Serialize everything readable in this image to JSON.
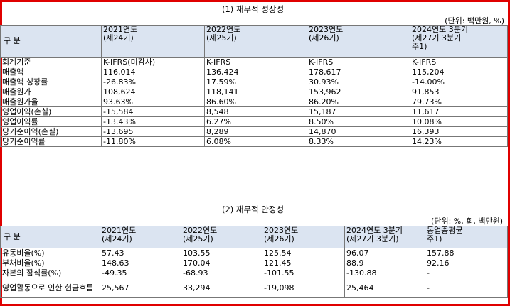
{
  "section1": {
    "title": "(1) 재무적 성장성",
    "unit": "(단위: 백만원, %)",
    "header": [
      "구    분",
      "2021연도\n(제24기)",
      "2022연도\n(제25기)",
      "2023연도\n(제26기)",
      "2024연도 3분기\n(제27기 3분기\n주1)"
    ],
    "rows": [
      [
        "회계기준",
        "K-IFRS(미감사)",
        "K-IFRS",
        "K-IFRS",
        "K-IFRS"
      ],
      [
        "매출액",
        "116,014",
        "136,424",
        "178,617",
        "115,204"
      ],
      [
        "매출액 성장률",
        "-26.83%",
        "17.59%",
        "30.93%",
        "-14.00%"
      ],
      [
        "매출원가",
        "108,624",
        "118,141",
        "153,962",
        "91,853"
      ],
      [
        "매출원가율",
        "93.63%",
        "86.60%",
        "86.20%",
        "79.73%"
      ],
      [
        "영업이익(손실)",
        "-15,584",
        "8,548",
        "15,187",
        "11,617"
      ],
      [
        "영업이익률",
        "-13.43%",
        "6.27%",
        "8.50%",
        "10.08%"
      ],
      [
        "당기순이익(손실)",
        "-13,695",
        "8,289",
        "14,870",
        "16,393"
      ],
      [
        "당기순이익률",
        "-11.80%",
        "6.08%",
        "8.33%",
        "14.23%"
      ]
    ]
  },
  "section2": {
    "title": "(2) 재무적 안정성",
    "unit": "(단위: %, 회, 백만원)",
    "header": [
      "구    분",
      "2021연도\n(제24기)",
      "2022연도\n(제25기)",
      "2023연도\n(제26기)",
      "2024연도 3분기\n(제27기 3분기)",
      "동업종평균\n주1)"
    ],
    "rows": [
      [
        "유동비율(%)",
        "57.43",
        "103.55",
        "125.54",
        "96.07",
        "157.88"
      ],
      [
        "부채비율(%)",
        "148.63",
        "170.04",
        "121.45",
        "88.9",
        "92.16"
      ],
      [
        "자본의 잠식률(%)",
        "-49.35",
        "-68.93",
        "-101.55",
        "-130.88",
        "-"
      ],
      [
        "영업활동으로 인한\n현금흐름",
        "25,567",
        "33,294",
        "-19,098",
        "25,464",
        "-"
      ]
    ]
  }
}
